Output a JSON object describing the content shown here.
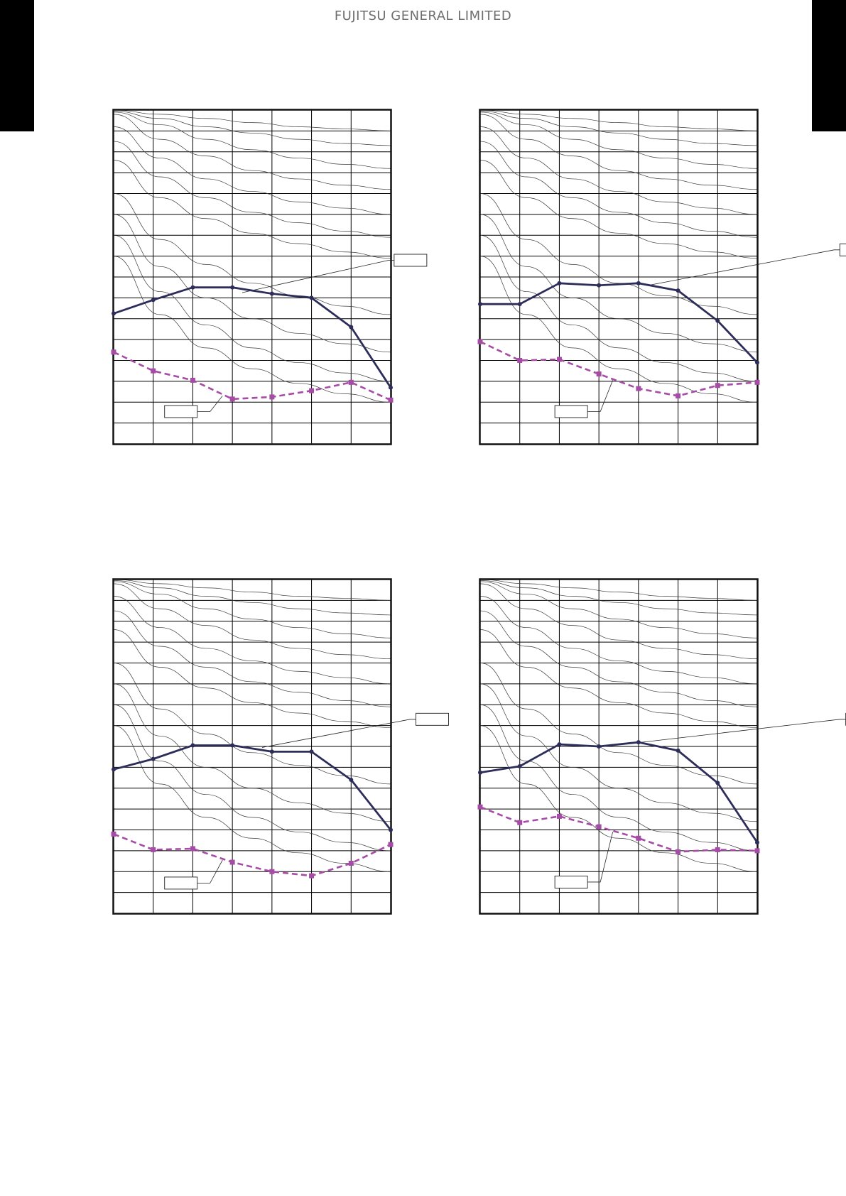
{
  "header": {
    "brand": "FUJITSU GENERAL LIMITED"
  },
  "style": {
    "grid_color": "#000000",
    "curve_color": "#3a3a3a",
    "series_a_color": "#2d2d5a",
    "series_b_color": "#a64ca6"
  },
  "chart_data": [
    {
      "type": "line",
      "grid": true,
      "x_divisions": 7,
      "y_divisions": 16,
      "xlim": [
        0,
        7
      ],
      "ylim": [
        0,
        16
      ],
      "series": [
        {
          "line": "solid",
          "x": [
            0,
            1,
            2,
            3,
            4,
            5,
            6,
            7
          ],
          "values": [
            6.25,
            6.9,
            7.5,
            7.5,
            7.2,
            7.0,
            5.6,
            2.7
          ]
        },
        {
          "line": "dashed",
          "x": [
            0,
            1,
            2,
            3,
            4,
            5,
            6,
            7
          ],
          "values": [
            4.4,
            3.5,
            3.05,
            2.15,
            2.25,
            2.55,
            2.95,
            2.1
          ]
        }
      ],
      "callouts": [
        {
          "series": 0,
          "box": [
            7.5,
            8.8
          ],
          "at": [
            3.25,
            7.25
          ]
        },
        {
          "series": 1,
          "box": [
            1.7,
            1.55
          ],
          "at": [
            2.75,
            2.3
          ]
        }
      ],
      "curves": [
        [
          13.6,
          11.8,
          10.8,
          10.1,
          9.6,
          9.2,
          8.9
        ],
        [
          14.5,
          12.8,
          11.8,
          11.1,
          10.6,
          10.2,
          9.9
        ],
        [
          15.2,
          13.7,
          12.7,
          12.1,
          11.6,
          11.3,
          11.0
        ],
        [
          15.8,
          14.6,
          13.8,
          13.1,
          12.7,
          12.4,
          12.2
        ],
        [
          15.9,
          15.3,
          14.6,
          14.1,
          13.7,
          13.4,
          13.2
        ],
        [
          15.95,
          15.6,
          15.2,
          14.9,
          14.6,
          14.4,
          14.3
        ],
        [
          16.0,
          15.8,
          15.6,
          15.4,
          15.2,
          15.1,
          15.0
        ],
        [
          12.0,
          9.8,
          8.6,
          7.7,
          7.1,
          6.6,
          6.2
        ],
        [
          11.0,
          8.5,
          7.0,
          6.0,
          5.3,
          4.8,
          4.4
        ],
        [
          10.0,
          7.3,
          5.7,
          4.6,
          3.9,
          3.4,
          3.0
        ],
        [
          9.0,
          6.2,
          4.6,
          3.6,
          2.9,
          2.4,
          2.0
        ]
      ]
    },
    {
      "type": "line",
      "grid": true,
      "x_divisions": 7,
      "y_divisions": 16,
      "xlim": [
        0,
        7
      ],
      "ylim": [
        0,
        16
      ],
      "series": [
        {
          "line": "solid",
          "x": [
            0,
            1,
            2,
            3,
            4,
            5,
            6,
            7
          ],
          "values": [
            6.7,
            6.7,
            7.7,
            7.6,
            7.7,
            7.35,
            5.9,
            3.9
          ]
        },
        {
          "line": "dashed",
          "x": [
            0,
            1,
            2,
            3,
            4,
            5,
            6,
            7
          ],
          "values": [
            4.9,
            4.0,
            4.05,
            3.35,
            2.65,
            2.3,
            2.8,
            2.95
          ]
        }
      ],
      "callouts": [
        {
          "series": 0,
          "box": [
            9.5,
            9.3
          ],
          "at": [
            4.25,
            7.6
          ]
        },
        {
          "series": 1,
          "box": [
            2.3,
            1.55
          ],
          "at": [
            3.35,
            3.05
          ]
        }
      ],
      "curves": [
        [
          13.6,
          11.8,
          10.8,
          10.1,
          9.6,
          9.2,
          8.9
        ],
        [
          14.5,
          12.8,
          11.8,
          11.1,
          10.6,
          10.2,
          9.9
        ],
        [
          15.2,
          13.7,
          12.7,
          12.1,
          11.6,
          11.3,
          11.0
        ],
        [
          15.8,
          14.6,
          13.8,
          13.1,
          12.7,
          12.4,
          12.2
        ],
        [
          15.9,
          15.3,
          14.6,
          14.1,
          13.7,
          13.4,
          13.2
        ],
        [
          15.95,
          15.6,
          15.2,
          14.9,
          14.6,
          14.4,
          14.3
        ],
        [
          16.0,
          15.8,
          15.6,
          15.4,
          15.2,
          15.1,
          15.0
        ],
        [
          12.0,
          9.8,
          8.6,
          7.7,
          7.1,
          6.6,
          6.2
        ],
        [
          11.0,
          8.5,
          7.0,
          6.0,
          5.3,
          4.8,
          4.4
        ],
        [
          10.0,
          7.3,
          5.7,
          4.6,
          3.9,
          3.4,
          3.0
        ],
        [
          9.0,
          6.2,
          4.6,
          3.6,
          2.9,
          2.4,
          2.0
        ]
      ]
    },
    {
      "type": "line",
      "grid": true,
      "x_divisions": 7,
      "y_divisions": 16,
      "xlim": [
        0,
        7
      ],
      "ylim": [
        0,
        16
      ],
      "series": [
        {
          "line": "solid",
          "x": [
            0,
            1,
            2,
            3,
            4,
            5,
            6,
            7
          ],
          "values": [
            6.9,
            7.4,
            8.05,
            8.05,
            7.75,
            7.75,
            6.4,
            4.0
          ]
        },
        {
          "line": "dashed",
          "x": [
            0,
            1,
            2,
            3,
            4,
            5,
            6,
            7
          ],
          "values": [
            3.8,
            3.05,
            3.1,
            2.45,
            2.0,
            1.8,
            2.4,
            3.3
          ]
        }
      ],
      "callouts": [
        {
          "series": 0,
          "box": [
            8.05,
            9.3
          ],
          "at": [
            3.75,
            7.95
          ]
        },
        {
          "series": 1,
          "box": [
            1.7,
            1.45
          ],
          "at": [
            2.75,
            2.55
          ]
        }
      ],
      "curves": [
        [
          13.6,
          11.8,
          10.8,
          10.1,
          9.6,
          9.2,
          8.9
        ],
        [
          14.5,
          12.8,
          11.8,
          11.1,
          10.6,
          10.2,
          9.9
        ],
        [
          15.2,
          13.7,
          12.7,
          12.1,
          11.6,
          11.3,
          11.0
        ],
        [
          15.8,
          14.6,
          13.8,
          13.1,
          12.7,
          12.4,
          12.2
        ],
        [
          15.9,
          15.3,
          14.6,
          14.1,
          13.7,
          13.4,
          13.2
        ],
        [
          15.95,
          15.6,
          15.2,
          14.9,
          14.6,
          14.4,
          14.3
        ],
        [
          16.0,
          15.8,
          15.6,
          15.4,
          15.2,
          15.1,
          15.0
        ],
        [
          12.0,
          9.8,
          8.6,
          7.7,
          7.1,
          6.6,
          6.2
        ],
        [
          11.0,
          8.5,
          7.0,
          6.0,
          5.3,
          4.8,
          4.4
        ],
        [
          10.0,
          7.3,
          5.7,
          4.6,
          3.9,
          3.4,
          3.0
        ],
        [
          9.0,
          6.2,
          4.6,
          3.6,
          2.9,
          2.4,
          2.0
        ]
      ]
    },
    {
      "type": "line",
      "grid": true,
      "x_divisions": 7,
      "y_divisions": 16,
      "xlim": [
        0,
        7
      ],
      "ylim": [
        0,
        16
      ],
      "series": [
        {
          "line": "solid",
          "x": [
            0,
            1,
            2,
            3,
            4,
            5,
            6,
            7
          ],
          "values": [
            6.75,
            7.05,
            8.1,
            8.0,
            8.2,
            7.8,
            6.25,
            3.4
          ]
        },
        {
          "line": "dashed",
          "x": [
            0,
            1,
            2,
            3,
            4,
            5,
            6,
            7
          ],
          "values": [
            5.1,
            4.35,
            4.65,
            4.15,
            3.6,
            2.95,
            3.05,
            3.0
          ]
        }
      ],
      "callouts": [
        {
          "series": 0,
          "box": [
            9.65,
            9.3
          ],
          "at": [
            3.85,
            8.15
          ]
        },
        {
          "series": 1,
          "box": [
            2.3,
            1.5
          ],
          "at": [
            3.35,
            3.9
          ]
        }
      ],
      "curves": [
        [
          13.6,
          11.8,
          10.8,
          10.1,
          9.6,
          9.2,
          8.9
        ],
        [
          14.5,
          12.8,
          11.8,
          11.1,
          10.6,
          10.2,
          9.9
        ],
        [
          15.2,
          13.7,
          12.7,
          12.1,
          11.6,
          11.3,
          11.0
        ],
        [
          15.8,
          14.6,
          13.8,
          13.1,
          12.7,
          12.4,
          12.2
        ],
        [
          15.9,
          15.3,
          14.6,
          14.1,
          13.7,
          13.4,
          13.2
        ],
        [
          15.95,
          15.6,
          15.2,
          14.9,
          14.6,
          14.4,
          14.3
        ],
        [
          16.0,
          15.8,
          15.6,
          15.4,
          15.2,
          15.1,
          15.0
        ],
        [
          12.0,
          9.8,
          8.6,
          7.7,
          7.1,
          6.6,
          6.2
        ],
        [
          11.0,
          8.5,
          7.0,
          6.0,
          5.3,
          4.8,
          4.4
        ],
        [
          10.0,
          7.3,
          5.7,
          4.6,
          3.9,
          3.4,
          3.0
        ],
        [
          9.0,
          6.2,
          4.6,
          3.6,
          2.9,
          2.4,
          2.0
        ]
      ]
    }
  ]
}
